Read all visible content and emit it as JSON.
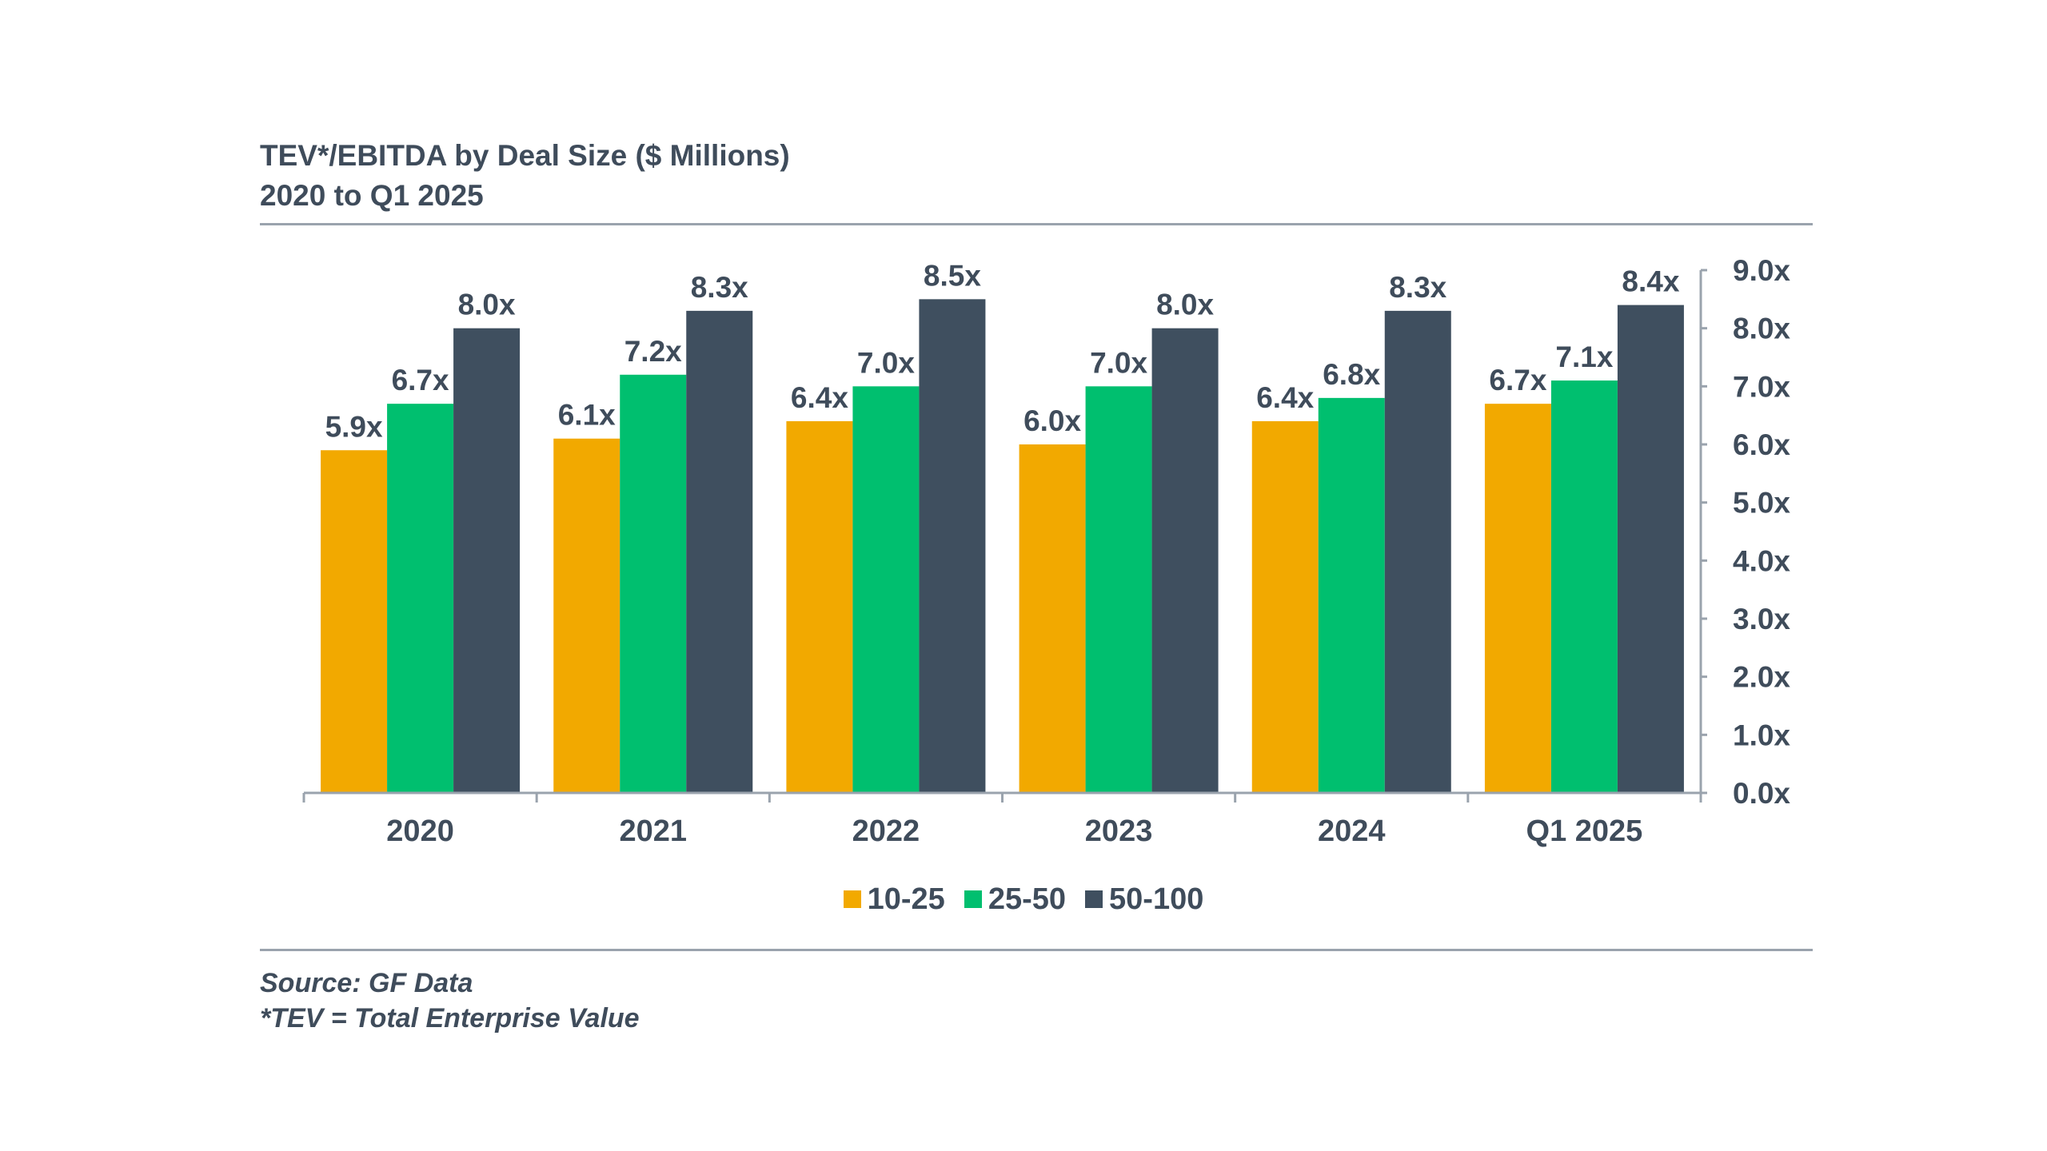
{
  "header": {
    "title_line1": "TEV*/EBITDA by Deal Size ($ Millions)",
    "title_line2": "2020 to Q1 2025"
  },
  "footer": {
    "source": "Source: GF Data",
    "note": "*TEV = Total Enterprise Value"
  },
  "colors": {
    "10-25": "#f2a900",
    "25-50": "#00bf6f",
    "50-100": "#3f4f5f",
    "text": "#3f4c5b",
    "axis": "#9aa3ad"
  },
  "chart_data": {
    "type": "bar",
    "title": "TEV*/EBITDA by Deal Size ($ Millions)",
    "subtitle": "2020 to Q1 2025",
    "categories": [
      "2020",
      "2021",
      "2022",
      "2023",
      "2024",
      "Q1 2025"
    ],
    "series": [
      {
        "name": "10-25",
        "values": [
          5.9,
          6.1,
          6.4,
          6.0,
          6.4,
          6.7
        ],
        "labels": [
          "5.9x",
          "6.1x",
          "6.4x",
          "6.0x",
          "6.4x",
          "6.7x"
        ]
      },
      {
        "name": "25-50",
        "values": [
          6.7,
          7.2,
          7.0,
          7.0,
          6.8,
          7.1
        ],
        "labels": [
          "6.7x",
          "7.2x",
          "7.0x",
          "7.0x",
          "6.8x",
          "7.1x"
        ]
      },
      {
        "name": "50-100",
        "values": [
          8.0,
          8.3,
          8.5,
          8.0,
          8.3,
          8.4
        ],
        "labels": [
          "8.0x",
          "8.3x",
          "8.5x",
          "8.0x",
          "8.3x",
          "8.4x"
        ]
      }
    ],
    "ylim": [
      0,
      9
    ],
    "yticks": [
      "0.0x",
      "1.0x",
      "2.0x",
      "3.0x",
      "4.0x",
      "5.0x",
      "6.0x",
      "7.0x",
      "8.0x",
      "9.0x"
    ],
    "y_axis_side": "right",
    "grid": false,
    "legend_position": "bottom-center",
    "xlabel": "",
    "ylabel": ""
  }
}
